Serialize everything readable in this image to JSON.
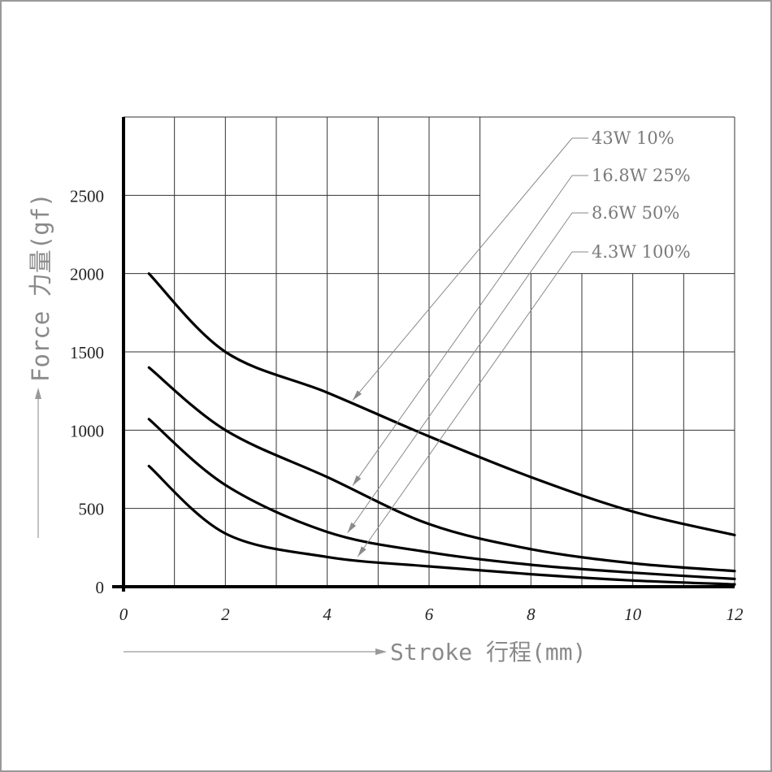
{
  "chart_data": {
    "type": "line",
    "xlabel": "Stroke 行程(mm)",
    "ylabel": "Force 力量(gf)",
    "xlim": [
      0,
      12
    ],
    "ylim": [
      0,
      3000
    ],
    "x_ticks": [
      "0",
      "2",
      "4",
      "6",
      "8",
      "10",
      "12"
    ],
    "y_ticks": [
      "0",
      "500",
      "1000",
      "1500",
      "2000",
      "2500"
    ],
    "grid": true,
    "series": [
      {
        "name": "43W 10%",
        "x": [
          0.5,
          2,
          4,
          6,
          8,
          10,
          12
        ],
        "y": [
          2000,
          1500,
          1240,
          960,
          700,
          480,
          330
        ]
      },
      {
        "name": "16.8W 25%",
        "x": [
          0.5,
          2,
          4,
          6,
          8,
          10,
          12
        ],
        "y": [
          1400,
          1000,
          700,
          400,
          240,
          150,
          100
        ]
      },
      {
        "name": "8.6W 50%",
        "x": [
          0.5,
          2,
          4,
          6,
          8,
          10,
          12
        ],
        "y": [
          1070,
          650,
          350,
          220,
          140,
          90,
          50
        ]
      },
      {
        "name": "4.3W 100%",
        "x": [
          0.5,
          2,
          4,
          6,
          8,
          10,
          12
        ],
        "y": [
          770,
          340,
          190,
          130,
          80,
          40,
          15
        ]
      }
    ]
  }
}
